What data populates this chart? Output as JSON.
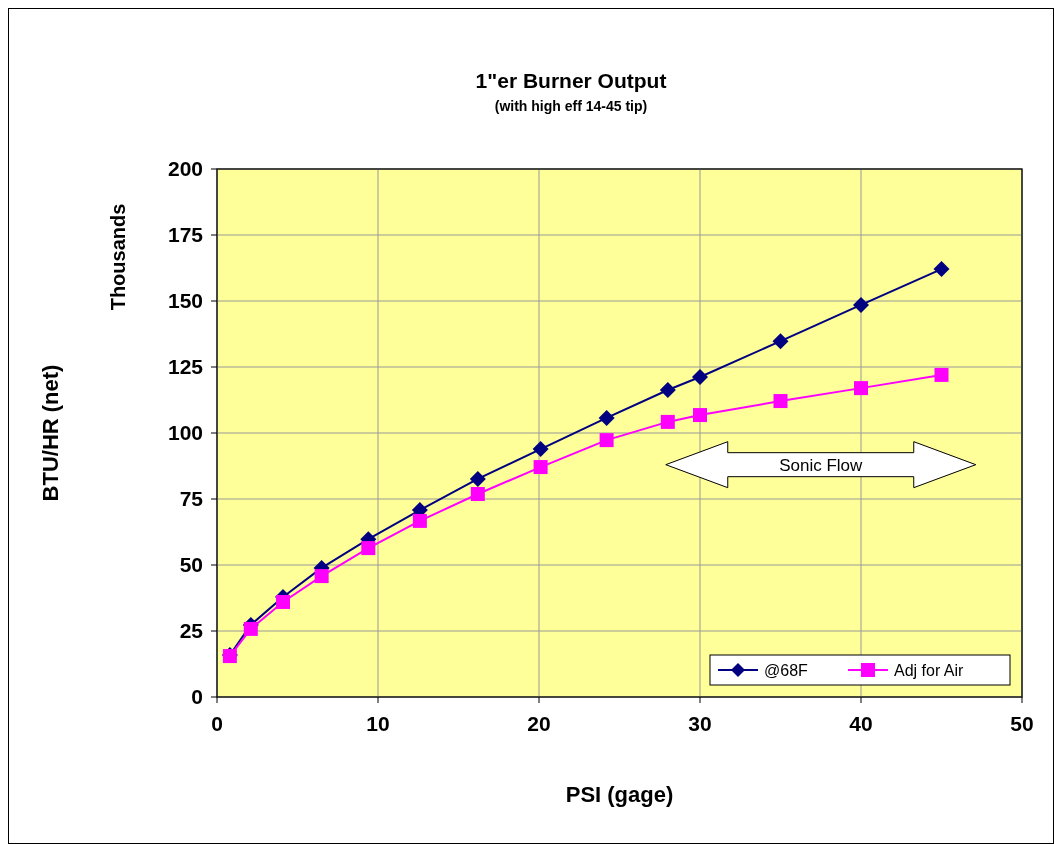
{
  "chart_data": {
    "type": "line",
    "title": "1\"er Burner Output",
    "subtitle": "(with high eff 14-45 tip)",
    "xlabel": "PSI (gage)",
    "ylabel": "BTU/HR (net)",
    "annotations": [
      "Thousands",
      "Sonic Flow"
    ],
    "x": [
      0.8,
      2.1,
      4.1,
      6.5,
      9.4,
      12.6,
      16.2,
      20.1,
      24.2,
      28,
      30,
      35,
      40,
      45
    ],
    "series": [
      {
        "name": "@68F",
        "color": "#000080",
        "marker": "diamond",
        "values": [
          15.9,
          27.3,
          37.9,
          48.9,
          59.8,
          70.8,
          82.6,
          93.9,
          105.7,
          116.3,
          121.2,
          134.8,
          148.5,
          162.1
        ]
      },
      {
        "name": "Adj for Air",
        "color": "#ff00ff",
        "marker": "square",
        "values": [
          15.5,
          25.8,
          36,
          45.8,
          56.4,
          66.7,
          76.9,
          87.1,
          97.3,
          104.2,
          106.8,
          112.1,
          117,
          122
        ]
      }
    ],
    "xlim": [
      0,
      50
    ],
    "xticks": [
      0,
      10,
      20,
      30,
      40,
      50
    ],
    "ylim": [
      0,
      200
    ],
    "yticks": [
      0,
      25,
      50,
      75,
      100,
      125,
      150,
      175,
      200
    ],
    "grid": true,
    "legend": "bottom right",
    "line_style": "solid"
  }
}
